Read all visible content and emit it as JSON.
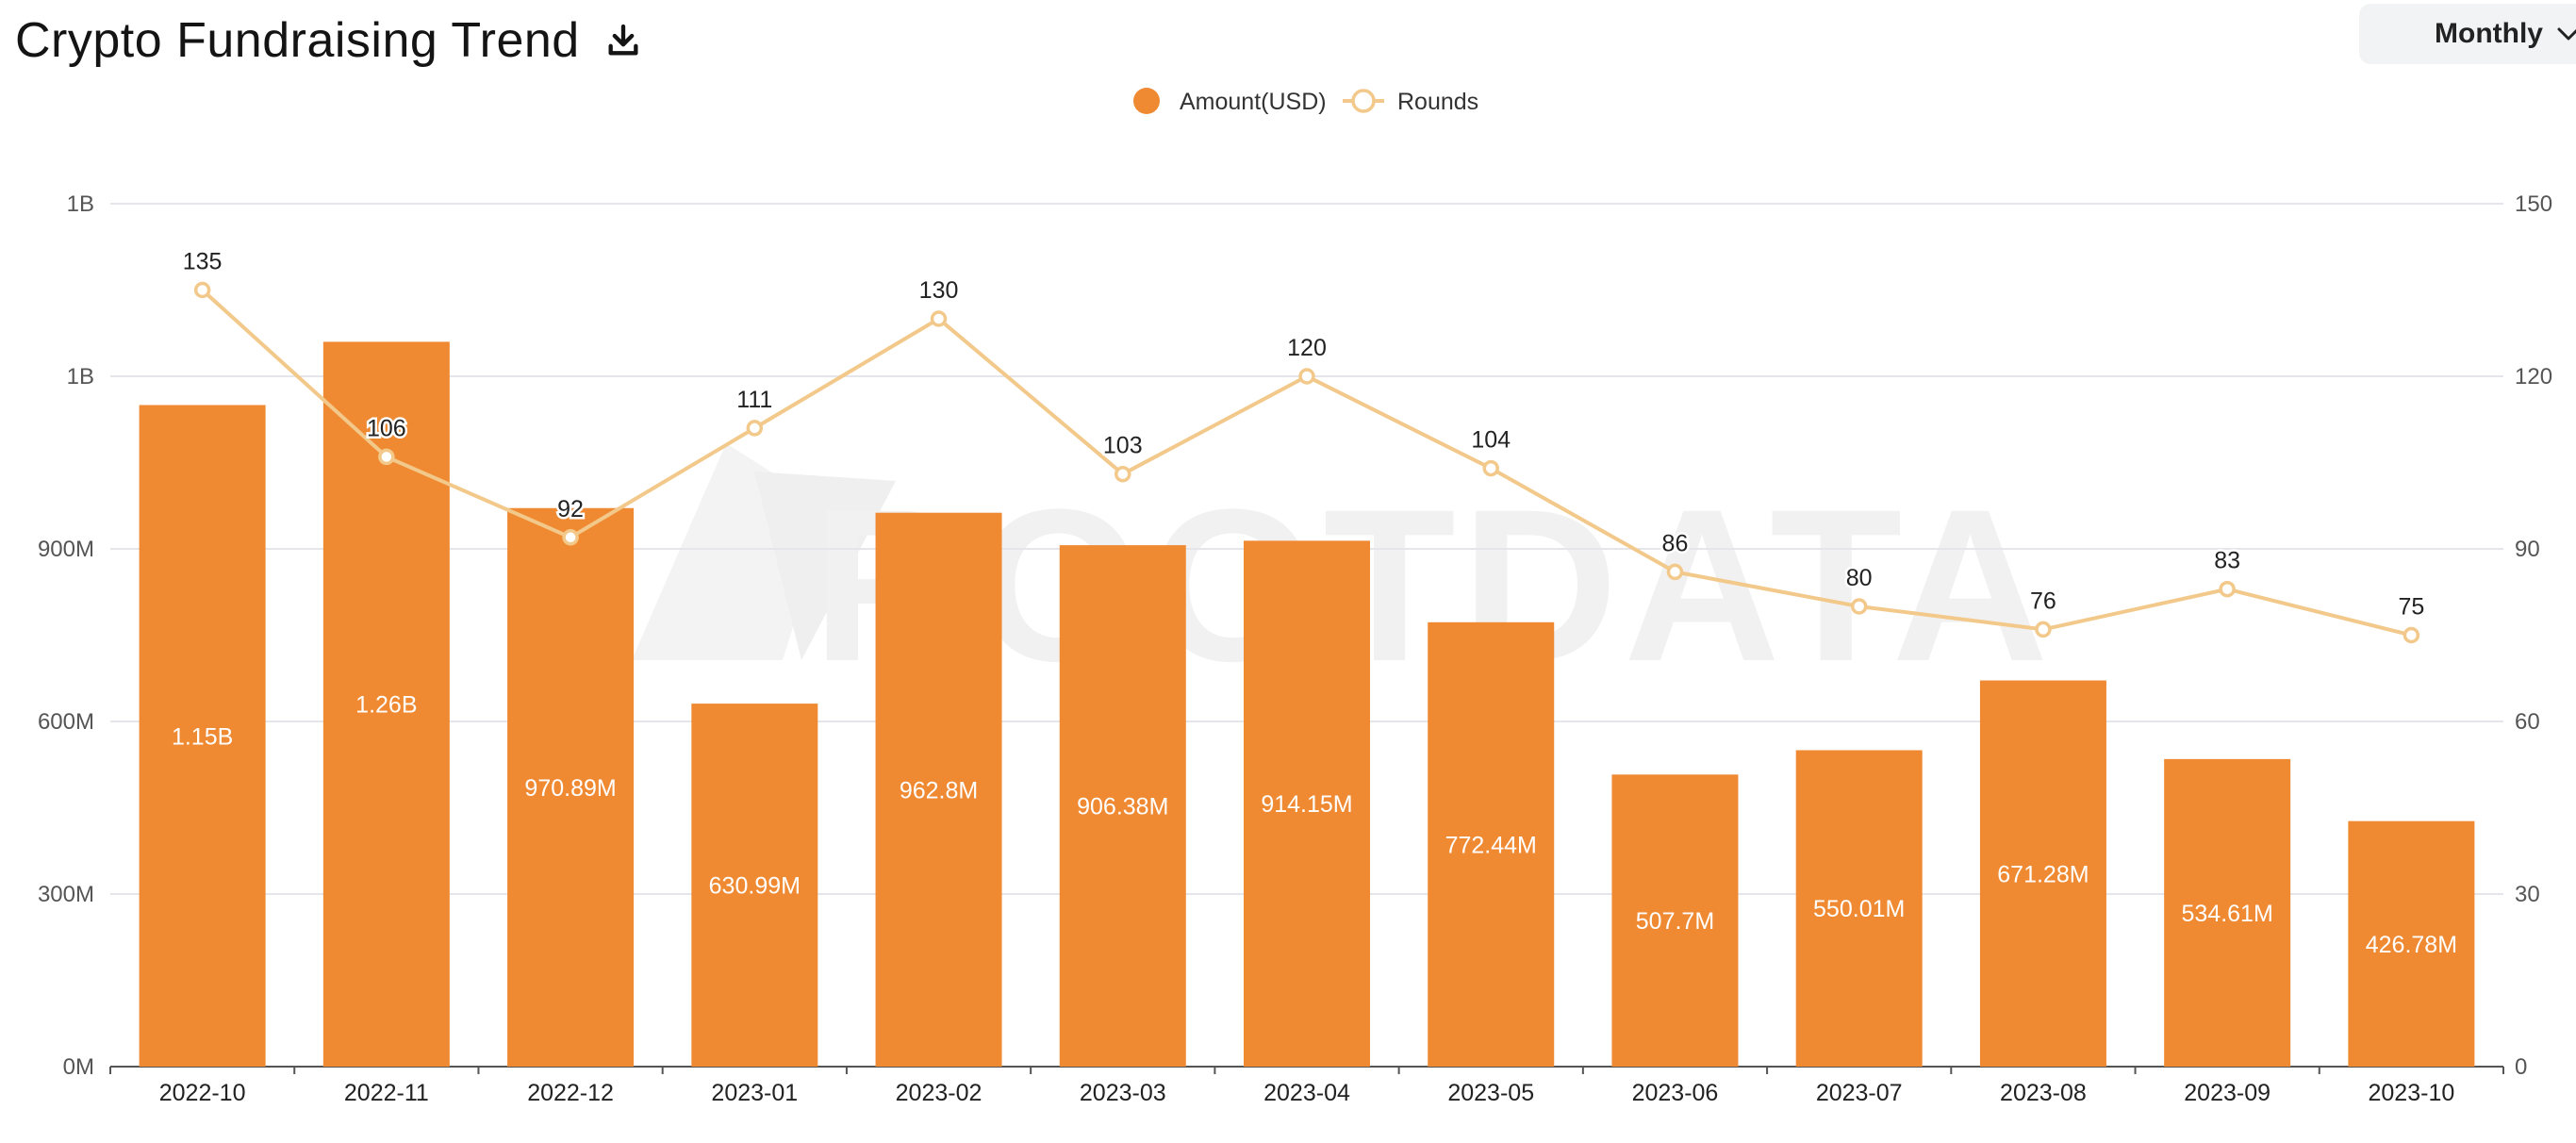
{
  "header": {
    "title": "Crypto Fundraising Trend",
    "period": "Monthly"
  },
  "watermark": "ROOTDATA",
  "colors": {
    "bar": "#EF8A33",
    "line": "#F2C98A",
    "grid": "#E4E6EB",
    "axis": "#555555"
  },
  "chart_data": {
    "type": "bar",
    "title": "Crypto Fundraising Trend",
    "categories": [
      "2022-10",
      "2022-11",
      "2022-12",
      "2023-01",
      "2023-02",
      "2023-03",
      "2023-04",
      "2023-05",
      "2023-06",
      "2023-07",
      "2023-08",
      "2023-09",
      "2023-10"
    ],
    "series": [
      {
        "name": "Amount(USD)",
        "type": "bar",
        "axis": "left",
        "values": [
          1150000000,
          1260000000,
          970890000,
          630990000,
          962800000,
          906380000,
          914150000,
          772440000,
          507700000,
          550010000,
          671280000,
          534610000,
          426780000
        ],
        "labels": [
          "1.15B",
          "1.26B",
          "970.89M",
          "630.99M",
          "962.8M",
          "906.38M",
          "914.15M",
          "772.44M",
          "507.7M",
          "550.01M",
          "671.28M",
          "534.61M",
          "426.78M"
        ]
      },
      {
        "name": "Rounds",
        "type": "line",
        "axis": "right",
        "values": [
          135,
          106,
          92,
          111,
          130,
          103,
          120,
          104,
          86,
          80,
          76,
          83,
          75
        ]
      }
    ],
    "left_axis": {
      "ticks": [
        "0M",
        "300M",
        "600M",
        "900M",
        "1B",
        "1B"
      ],
      "ylim": [
        0,
        1500000000
      ]
    },
    "right_axis": {
      "ticks": [
        "0",
        "30",
        "60",
        "90",
        "120",
        "150"
      ],
      "ylim": [
        0,
        150
      ]
    },
    "legend": [
      "Amount(USD)",
      "Rounds"
    ],
    "grid": true
  }
}
